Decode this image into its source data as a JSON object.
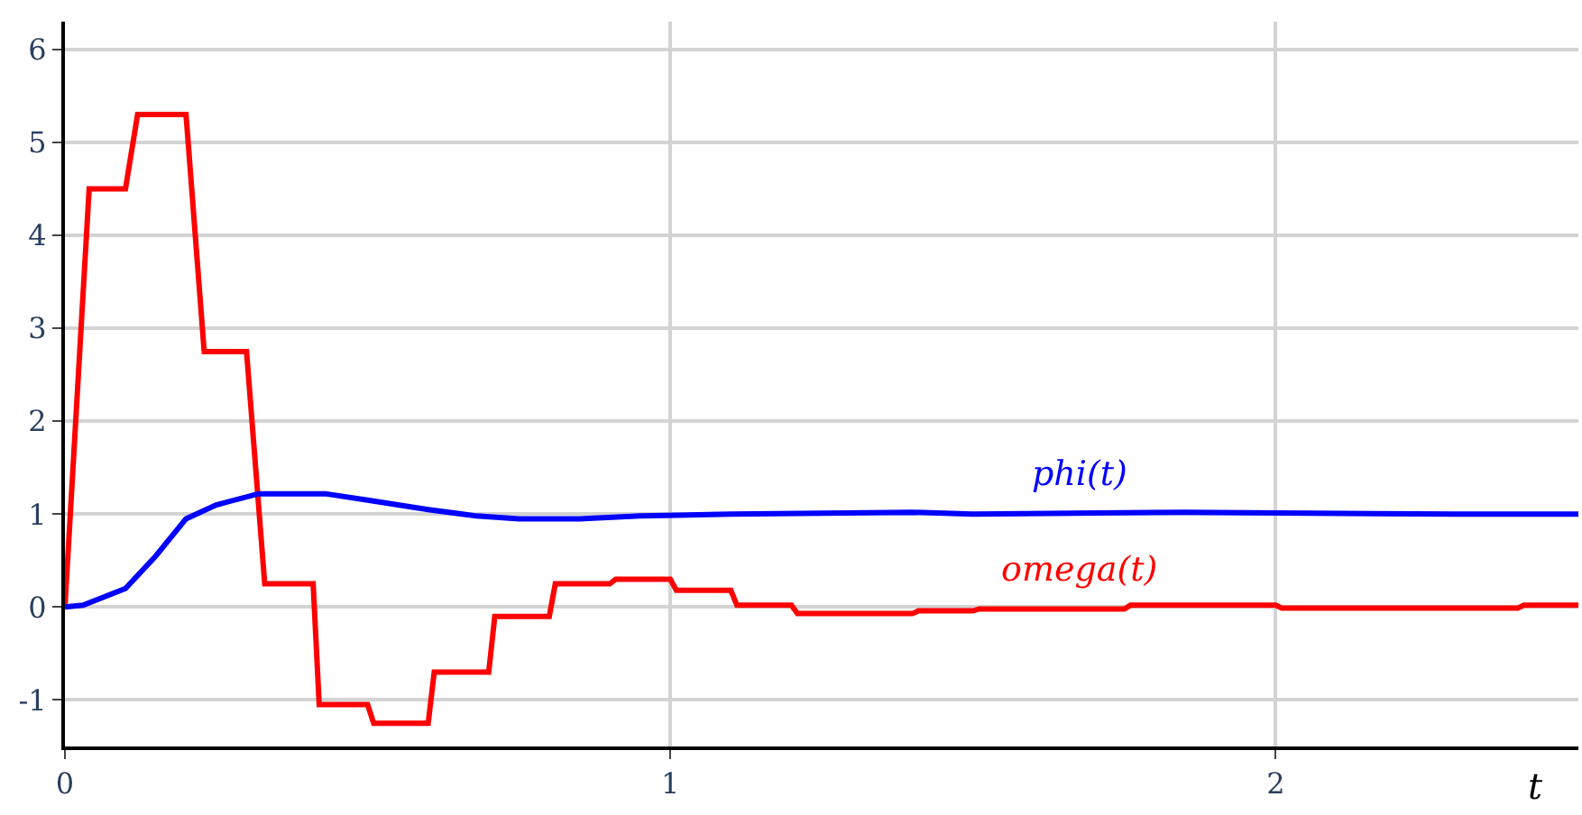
{
  "chart_data": {
    "type": "line",
    "xlabel": "t",
    "xlim": [
      0,
      2.5
    ],
    "ylim": [
      -1.5,
      6.3
    ],
    "xticks": [
      0,
      1,
      2
    ],
    "yticks": [
      -1,
      0,
      1,
      2,
      3,
      4,
      5,
      6
    ],
    "grid": true,
    "legend": false,
    "marker": "none",
    "line_style": "solid",
    "series": [
      {
        "name": "omega(t)",
        "color": "#ff0000",
        "x": [
          0,
          0.04,
          0.1,
          0.12,
          0.2,
          0.23,
          0.3,
          0.33,
          0.41,
          0.42,
          0.5,
          0.51,
          0.6,
          0.61,
          0.7,
          0.71,
          0.8,
          0.81,
          0.9,
          0.91,
          1.0,
          1.01,
          1.1,
          1.11,
          1.2,
          1.21,
          1.4,
          1.41,
          1.5,
          1.51,
          1.75,
          1.76,
          2.0,
          2.01,
          2.4,
          2.41,
          2.5
        ],
        "values": [
          0,
          4.5,
          4.5,
          5.3,
          5.3,
          2.75,
          2.75,
          0.25,
          0.25,
          -1.05,
          -1.05,
          -1.25,
          -1.25,
          -0.7,
          -0.7,
          -0.1,
          -0.1,
          0.25,
          0.25,
          0.3,
          0.3,
          0.18,
          0.18,
          0.02,
          0.02,
          -0.07,
          -0.07,
          -0.04,
          -0.04,
          -0.02,
          -0.02,
          0.02,
          0.02,
          -0.01,
          -0.01,
          0.02,
          0.02
        ]
      },
      {
        "name": "phi(t)",
        "color": "#0000ff",
        "x": [
          0,
          0.03,
          0.1,
          0.15,
          0.2,
          0.25,
          0.32,
          0.43,
          0.5,
          0.6,
          0.68,
          0.75,
          0.85,
          0.95,
          1.1,
          1.4,
          1.5,
          1.85,
          2.3,
          2.5
        ],
        "values": [
          0,
          0.02,
          0.2,
          0.55,
          0.95,
          1.1,
          1.22,
          1.22,
          1.15,
          1.05,
          0.98,
          0.95,
          0.95,
          0.98,
          1.0,
          1.02,
          1.0,
          1.02,
          1.0,
          1.0
        ]
      }
    ]
  }
}
